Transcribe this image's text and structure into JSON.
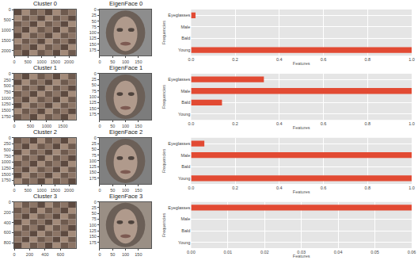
{
  "chart_data": [
    {
      "type": "image",
      "title": "Cluster 0",
      "xlim": [
        0,
        2250
      ],
      "ylim": [
        0,
        2250
      ],
      "xticks": [
        0,
        500,
        1000,
        1500,
        2000
      ],
      "yticks": [
        0,
        500,
        1000,
        1500,
        2000
      ]
    },
    {
      "type": "image",
      "title": "EigenFace 0",
      "xlim": [
        0,
        200
      ],
      "ylim": [
        0,
        200
      ],
      "xticks": [
        0,
        50,
        100,
        150
      ],
      "yticks": [
        0,
        25,
        50,
        75,
        100,
        125,
        150,
        175
      ]
    },
    {
      "type": "bar",
      "orientation": "horizontal",
      "grid": true,
      "color": "#e24a33",
      "x_label": "Features",
      "y_label": "Frequencies",
      "categories": [
        "Eyeglasses",
        "Male",
        "Bald",
        "Young"
      ],
      "values": [
        0.02,
        0,
        0,
        1.0
      ],
      "xlim": [
        0,
        1
      ],
      "xticks": [
        {
          "value": 0,
          "label": "0.0"
        },
        0.2,
        0.4,
        0.6,
        0.8,
        {
          "value": 1,
          "label": "1.0"
        }
      ]
    },
    {
      "type": "image",
      "title": "Cluster 1",
      "xlim": [
        0,
        1900
      ],
      "ylim": [
        0,
        1900
      ],
      "xticks": [
        0,
        500,
        1000,
        1500
      ],
      "yticks": [
        0,
        250,
        500,
        750,
        1000,
        1250,
        1500,
        1750
      ]
    },
    {
      "type": "image",
      "title": "EigenFace 1",
      "xlim": [
        0,
        200
      ],
      "ylim": [
        0,
        200
      ],
      "xticks": [
        0,
        50,
        100,
        150
      ],
      "yticks": [
        0,
        25,
        50,
        75,
        100,
        125,
        150,
        175
      ]
    },
    {
      "type": "bar",
      "orientation": "horizontal",
      "grid": true,
      "color": "#e24a33",
      "x_label": "Features",
      "y_label": "Frequencies",
      "categories": [
        "Eyeglasses",
        "Male",
        "Bald",
        "Young"
      ],
      "values": [
        0.33,
        1.0,
        0.14,
        0
      ],
      "xlim": [
        0,
        1
      ],
      "xticks": [
        {
          "value": 0,
          "label": "0.0"
        },
        0.2,
        0.4,
        0.6,
        0.8,
        {
          "value": 1,
          "label": "1.0"
        }
      ]
    },
    {
      "type": "image",
      "title": "Cluster 2",
      "xlim": [
        0,
        2250
      ],
      "ylim": [
        0,
        1900
      ],
      "xticks": [
        0,
        500,
        1000,
        1500,
        2000
      ],
      "yticks": [
        0,
        250,
        500,
        750,
        1000,
        1250,
        1500,
        1750
      ]
    },
    {
      "type": "image",
      "title": "EigenFace 2",
      "xlim": [
        0,
        200
      ],
      "ylim": [
        0,
        200
      ],
      "xticks": [
        0,
        50,
        100,
        150
      ],
      "yticks": [
        0,
        25,
        50,
        75,
        100,
        125,
        150,
        175
      ]
    },
    {
      "type": "bar",
      "orientation": "horizontal",
      "grid": true,
      "color": "#e24a33",
      "x_label": "Features",
      "y_label": "Frequencies",
      "categories": [
        "Eyeglasses",
        "Male",
        "Bald",
        "Young"
      ],
      "values": [
        0.06,
        1.0,
        0,
        1.0
      ],
      "xlim": [
        0,
        1
      ],
      "xticks": [
        {
          "value": 0,
          "label": "0.0"
        },
        0.2,
        0.4,
        0.6,
        0.8,
        {
          "value": 1,
          "label": "1.0"
        }
      ]
    },
    {
      "type": "image",
      "title": "Cluster 3",
      "xlim": [
        0,
        800
      ],
      "ylim": [
        0,
        900
      ],
      "xticks": [
        0,
        200,
        400,
        600
      ],
      "yticks": [
        0,
        200,
        400,
        600,
        800
      ]
    },
    {
      "type": "image",
      "title": "EigenFace 3",
      "xlim": [
        0,
        200
      ],
      "ylim": [
        0,
        200
      ],
      "xticks": [
        0,
        50,
        100,
        150
      ],
      "yticks": [
        0,
        25,
        50,
        75,
        100,
        125,
        150,
        175
      ]
    },
    {
      "type": "bar",
      "orientation": "horizontal",
      "grid": true,
      "color": "#e24a33",
      "x_label": "Features",
      "y_label": "Frequencies",
      "categories": [
        "Eyeglasses",
        "Male",
        "Bald",
        "Young"
      ],
      "values": [
        0.06,
        0,
        0,
        0
      ],
      "xlim": [
        0,
        0.06
      ],
      "xticks": [
        {
          "value": 0,
          "label": "0.00"
        },
        {
          "value": 0.01,
          "label": "0.01"
        },
        {
          "value": 0.02,
          "label": "0.02"
        },
        {
          "value": 0.03,
          "label": "0.03"
        },
        {
          "value": 0.04,
          "label": "0.04"
        },
        {
          "value": 0.05,
          "label": "0.05"
        },
        {
          "value": 0.06,
          "label": "0.06"
        }
      ]
    }
  ]
}
